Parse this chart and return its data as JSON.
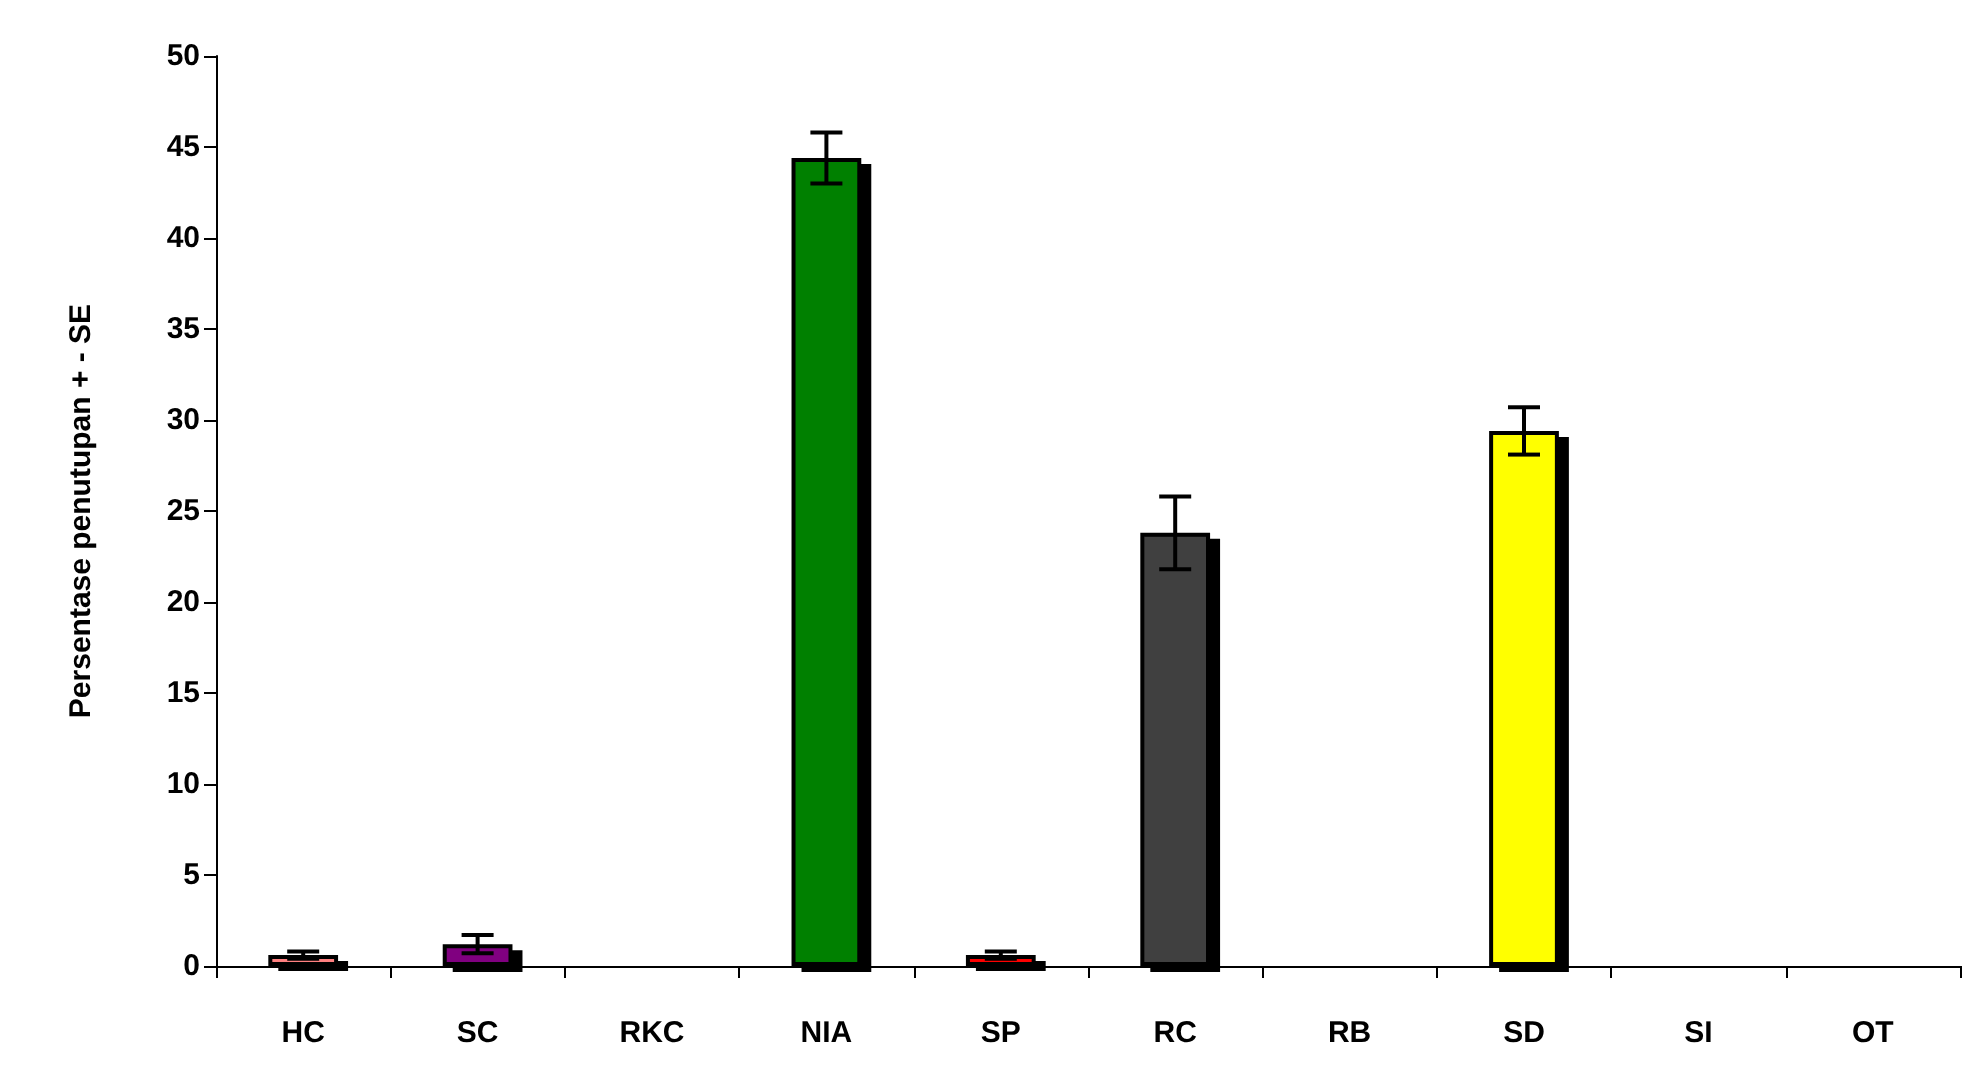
{
  "chart_data": {
    "type": "bar",
    "ylabel": "Persentase penutupan + - SE",
    "categories": [
      "HC",
      "SC",
      "RKC",
      "NIA",
      "SP",
      "RC",
      "RB",
      "SD",
      "SI",
      "OT"
    ],
    "values": [
      0.6,
      1.2,
      0,
      44.4,
      0.6,
      23.8,
      0,
      29.4,
      0,
      0
    ],
    "colors": [
      "#ff8080",
      "#800080",
      "#000000",
      "#008000",
      "#ff0000",
      "#404040",
      "#000000",
      "#ffff00",
      "#000000",
      "#000000"
    ],
    "errors": [
      0.2,
      0.5,
      null,
      1.4,
      0.2,
      2,
      null,
      1.3,
      null,
      null
    ],
    "ylim": [
      0,
      50
    ],
    "yticks": [
      0,
      5,
      10,
      15,
      20,
      25,
      30,
      35,
      40,
      45,
      50
    ],
    "grid": false
  }
}
